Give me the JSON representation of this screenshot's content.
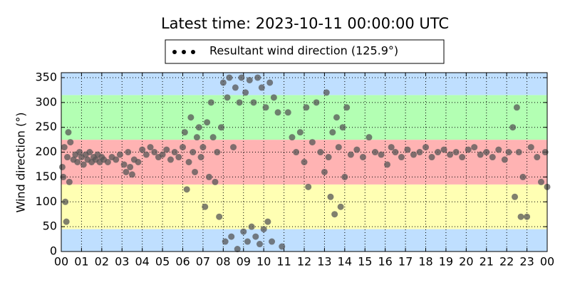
{
  "chart_data": {
    "type": "scatter",
    "title": "Latest time: 2023-10-11 00:00:00 UTC",
    "ylabel": "Wind direction (°)",
    "xlim": [
      0,
      24
    ],
    "ylim": [
      0,
      360
    ],
    "yticks": [
      0,
      50,
      100,
      150,
      200,
      250,
      300,
      350
    ],
    "xticks": [
      {
        "value": 0,
        "label": "00"
      },
      {
        "value": 1,
        "label": "01"
      },
      {
        "value": 2,
        "label": "02"
      },
      {
        "value": 3,
        "label": "03"
      },
      {
        "value": 4,
        "label": "04"
      },
      {
        "value": 5,
        "label": "05"
      },
      {
        "value": 6,
        "label": "06"
      },
      {
        "value": 7,
        "label": "07"
      },
      {
        "value": 8,
        "label": "08"
      },
      {
        "value": 9,
        "label": "09"
      },
      {
        "value": 10,
        "label": "10"
      },
      {
        "value": 11,
        "label": "11"
      },
      {
        "value": 12,
        "label": "12"
      },
      {
        "value": 13,
        "label": "13"
      },
      {
        "value": 14,
        "label": "14"
      },
      {
        "value": 15,
        "label": "15"
      },
      {
        "value": 16,
        "label": "16"
      },
      {
        "value": 17,
        "label": "17"
      },
      {
        "value": 18,
        "label": "18"
      },
      {
        "value": 19,
        "label": "19"
      },
      {
        "value": 20,
        "label": "20"
      },
      {
        "value": 21,
        "label": "21"
      },
      {
        "value": 22,
        "label": "22"
      },
      {
        "value": 23,
        "label": "23"
      },
      {
        "value": 24,
        "label": "00"
      }
    ],
    "grid": true,
    "legend": "top",
    "bands": [
      {
        "from": 0,
        "to": 45,
        "color": "#bfdfff"
      },
      {
        "from": 45,
        "to": 135,
        "color": "#ffffb3"
      },
      {
        "from": 135,
        "to": 225,
        "color": "#ffb3b3"
      },
      {
        "from": 225,
        "to": 315,
        "color": "#b3ffb3"
      },
      {
        "from": 315,
        "to": 360,
        "color": "#bfdfff"
      }
    ],
    "series": [
      {
        "name": "Resultant wind direction (125.9°)",
        "color": "#555555",
        "x": [
          0.05,
          0.1,
          0.15,
          0.2,
          0.25,
          0.3,
          0.35,
          0.4,
          0.45,
          0.6,
          0.7,
          0.8,
          0.9,
          1.0,
          1.1,
          1.2,
          1.3,
          1.4,
          1.5,
          1.6,
          1.7,
          1.8,
          1.9,
          2.0,
          2.1,
          2.3,
          2.5,
          2.7,
          2.9,
          3.1,
          3.2,
          3.3,
          3.4,
          3.5,
          3.6,
          3.8,
          4.0,
          4.2,
          4.4,
          4.6,
          4.8,
          5.0,
          5.2,
          5.4,
          5.6,
          5.8,
          6.0,
          6.1,
          6.2,
          6.3,
          6.4,
          6.5,
          6.6,
          6.7,
          6.8,
          6.9,
          7.0,
          7.1,
          7.2,
          7.3,
          7.4,
          7.5,
          7.6,
          7.7,
          7.8,
          7.9,
          8.0,
          8.1,
          8.2,
          8.3,
          8.4,
          8.5,
          8.6,
          8.7,
          8.8,
          8.9,
          9.0,
          9.1,
          9.2,
          9.3,
          9.4,
          9.5,
          9.6,
          9.7,
          9.8,
          9.9,
          10.0,
          10.1,
          10.2,
          10.3,
          10.4,
          10.5,
          10.7,
          10.9,
          11.2,
          11.4,
          11.6,
          11.8,
          12.0,
          12.1,
          12.2,
          12.4,
          12.6,
          12.8,
          13.0,
          13.1,
          13.2,
          13.3,
          13.4,
          13.5,
          13.6,
          13.7,
          13.8,
          13.9,
          14.0,
          14.1,
          14.3,
          14.6,
          14.9,
          15.2,
          15.5,
          15.8,
          16.1,
          16.3,
          16.5,
          16.8,
          17.1,
          17.4,
          17.7,
          18.0,
          18.3,
          18.6,
          18.9,
          19.2,
          19.5,
          19.8,
          20.1,
          20.4,
          20.7,
          21.0,
          21.3,
          21.6,
          21.9,
          22.1,
          22.3,
          22.4,
          22.5,
          22.6,
          22.7,
          22.8,
          23.0,
          23.2,
          23.5,
          23.7,
          23.9,
          24.0
        ],
        "values": [
          170,
          150,
          210,
          100,
          60,
          190,
          240,
          140,
          220,
          185,
          195,
          180,
          200,
          190,
          175,
          195,
          185,
          200,
          180,
          190,
          185,
          195,
          180,
          190,
          185,
          180,
          190,
          185,
          195,
          175,
          160,
          200,
          170,
          155,
          185,
          180,
          205,
          195,
          210,
          200,
          190,
          195,
          205,
          185,
          200,
          190,
          210,
          240,
          125,
          180,
          270,
          200,
          160,
          230,
          250,
          190,
          210,
          90,
          260,
          150,
          300,
          230,
          140,
          200,
          70,
          250,
          340,
          20,
          310,
          350,
          30,
          210,
          330,
          5,
          300,
          350,
          40,
          320,
          20,
          345,
          50,
          300,
          30,
          350,
          15,
          330,
          45,
          290,
          60,
          340,
          20,
          310,
          280,
          10,
          280,
          230,
          200,
          240,
          180,
          290,
          130,
          220,
          300,
          200,
          160,
          320,
          190,
          110,
          240,
          75,
          270,
          210,
          90,
          250,
          150,
          290,
          195,
          205,
          190,
          230,
          200,
          195,
          175,
          210,
          200,
          190,
          205,
          195,
          200,
          210,
          190,
          200,
          205,
          195,
          200,
          190,
          205,
          210,
          195,
          200,
          190,
          205,
          185,
          200,
          250,
          110,
          290,
          200,
          70,
          150,
          70,
          210,
          190,
          140,
          200,
          130
        ]
      }
    ]
  }
}
